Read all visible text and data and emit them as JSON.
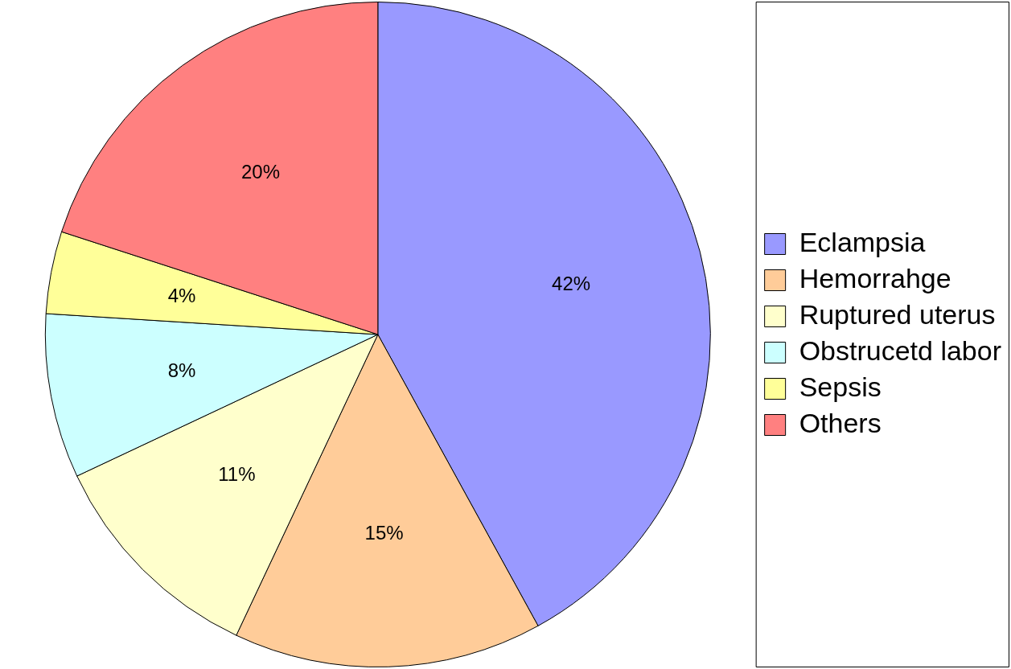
{
  "chart_data": {
    "type": "pie",
    "categories": [
      "Eclampsia",
      "Hemorrahge",
      "Ruptured uterus",
      "Obstrucetd labor",
      "Sepsis",
      "Others"
    ],
    "values": [
      42,
      15,
      11,
      8,
      4,
      20
    ],
    "value_labels": [
      "42%",
      "15%",
      "11%",
      "8%",
      "4%",
      "20%"
    ],
    "colors": [
      "#9999ff",
      "#ffcc99",
      "#ffffcc",
      "#ccffff",
      "#ffff99",
      "#ff8080"
    ],
    "legend": "right"
  }
}
